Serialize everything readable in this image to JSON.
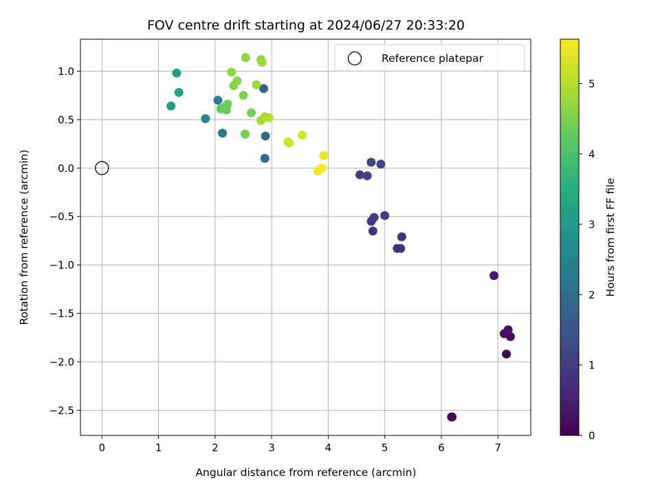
{
  "chart_data": {
    "type": "scatter",
    "title": "FOV centre drift starting at 2024/06/27 20:33:20",
    "xlabel": "Angular distance from reference (arcmin)",
    "ylabel": "Rotation from reference (arcmin)",
    "xlim": [
      -0.38,
      7.58
    ],
    "ylim": [
      -2.76,
      1.33
    ],
    "xticks": [
      0,
      1,
      2,
      3,
      4,
      5,
      6,
      7
    ],
    "yticks": [
      -2.5,
      -2.0,
      -1.5,
      -1.0,
      -0.5,
      0.0,
      0.5,
      1.0
    ],
    "xtick_labels": [
      "0",
      "1",
      "2",
      "3",
      "4",
      "5",
      "6",
      "7"
    ],
    "ytick_labels": [
      "−2.5",
      "−2.0",
      "−1.5",
      "−1.0",
      "−0.5",
      "0.0",
      "0.5",
      "1.0"
    ],
    "grid": true,
    "legend": {
      "position": "top-right",
      "label": "Reference platepar"
    },
    "reference_point": {
      "x": 0,
      "y": 0
    },
    "colorbar": {
      "label": "Hours from first FF file",
      "colormap": "viridis",
      "range": [
        0,
        5.63
      ],
      "ticks": [
        0,
        1,
        2,
        3,
        4,
        5
      ],
      "tick_labels": [
        "0",
        "1",
        "2",
        "3",
        "4",
        "5"
      ]
    },
    "points": [
      {
        "x": 6.18,
        "y": -2.57,
        "hours": 0.0
      },
      {
        "x": 6.19,
        "y": -2.57,
        "hours": 0.05
      },
      {
        "x": 7.15,
        "y": -1.92,
        "hours": 0.12
      },
      {
        "x": 7.22,
        "y": -1.74,
        "hours": 0.18
      },
      {
        "x": 7.11,
        "y": -1.71,
        "hours": 0.22
      },
      {
        "x": 7.18,
        "y": -1.67,
        "hours": 0.28
      },
      {
        "x": 6.93,
        "y": -1.11,
        "hours": 0.35
      },
      {
        "x": 5.28,
        "y": -0.83,
        "hours": 0.78
      },
      {
        "x": 5.22,
        "y": -0.83,
        "hours": 0.82
      },
      {
        "x": 5.3,
        "y": -0.71,
        "hours": 0.86
      },
      {
        "x": 4.79,
        "y": -0.65,
        "hours": 0.9
      },
      {
        "x": 4.76,
        "y": -0.55,
        "hours": 0.94
      },
      {
        "x": 4.81,
        "y": -0.51,
        "hours": 0.98
      },
      {
        "x": 5.0,
        "y": -0.49,
        "hours": 1.0
      },
      {
        "x": 4.56,
        "y": -0.07,
        "hours": 1.02
      },
      {
        "x": 4.69,
        "y": -0.08,
        "hours": 1.06
      },
      {
        "x": 4.76,
        "y": 0.06,
        "hours": 1.1
      },
      {
        "x": 4.93,
        "y": 0.04,
        "hours": 1.14
      },
      {
        "x": 2.86,
        "y": 0.82,
        "hours": 1.75
      },
      {
        "x": 2.89,
        "y": 0.33,
        "hours": 1.9
      },
      {
        "x": 2.88,
        "y": 0.1,
        "hours": 2.0
      },
      {
        "x": 2.13,
        "y": 0.36,
        "hours": 2.3
      },
      {
        "x": 2.05,
        "y": 0.7,
        "hours": 2.42
      },
      {
        "x": 1.83,
        "y": 0.51,
        "hours": 2.55
      },
      {
        "x": 1.22,
        "y": 0.64,
        "hours": 3.05
      },
      {
        "x": 1.32,
        "y": 0.98,
        "hours": 3.1
      },
      {
        "x": 1.36,
        "y": 0.78,
        "hours": 3.15
      },
      {
        "x": 2.1,
        "y": 0.61,
        "hours": 4.25
      },
      {
        "x": 2.2,
        "y": 0.6,
        "hours": 4.3
      },
      {
        "x": 2.17,
        "y": 0.63,
        "hours": 4.33
      },
      {
        "x": 2.22,
        "y": 0.66,
        "hours": 4.38
      },
      {
        "x": 2.53,
        "y": 0.35,
        "hours": 4.4
      },
      {
        "x": 2.64,
        "y": 0.57,
        "hours": 4.45
      },
      {
        "x": 2.5,
        "y": 0.75,
        "hours": 4.5
      },
      {
        "x": 2.33,
        "y": 0.85,
        "hours": 4.55
      },
      {
        "x": 2.39,
        "y": 0.9,
        "hours": 4.6
      },
      {
        "x": 2.29,
        "y": 0.99,
        "hours": 4.65
      },
      {
        "x": 2.54,
        "y": 1.14,
        "hours": 4.68
      },
      {
        "x": 2.81,
        "y": 1.12,
        "hours": 4.72
      },
      {
        "x": 2.83,
        "y": 1.09,
        "hours": 4.76
      },
      {
        "x": 2.73,
        "y": 0.86,
        "hours": 4.8
      },
      {
        "x": 2.81,
        "y": 0.49,
        "hours": 4.86
      },
      {
        "x": 2.88,
        "y": 0.53,
        "hours": 4.92
      },
      {
        "x": 2.95,
        "y": 0.52,
        "hours": 4.98
      },
      {
        "x": 3.29,
        "y": 0.27,
        "hours": 5.2
      },
      {
        "x": 3.31,
        "y": 0.26,
        "hours": 5.25
      },
      {
        "x": 3.54,
        "y": 0.34,
        "hours": 5.32
      },
      {
        "x": 3.92,
        "y": 0.13,
        "hours": 5.45
      },
      {
        "x": 3.82,
        "y": -0.03,
        "hours": 5.55
      },
      {
        "x": 3.89,
        "y": 0.0,
        "hours": 5.6
      }
    ]
  }
}
